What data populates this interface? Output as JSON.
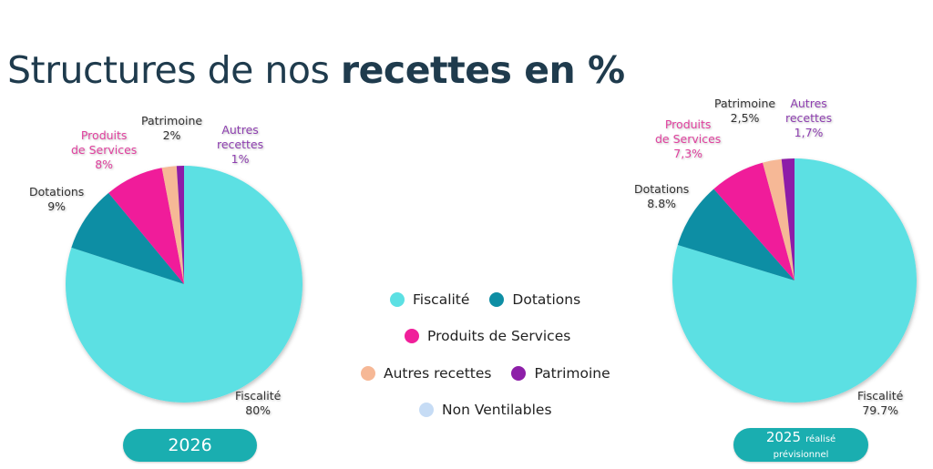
{
  "page": {
    "title_regular": "Structures de nos ",
    "title_bold": "recettes en %"
  },
  "colors": {
    "Fiscalité": "#5ce0e3",
    "Dotations": "#0e8ea4",
    "Produits de Services": "#f01f9a",
    "Autres recettes": "#f6b896",
    "Patrimoine": "#8d1fa8",
    "Non Ventilables": "#c6dcf5"
  },
  "legend": {
    "rows": [
      [
        "Fiscalité",
        "Dotations"
      ],
      [
        "Produits de Services"
      ],
      [
        "Autres recettes",
        "Patrimoine"
      ],
      [
        "Non Ventilables"
      ]
    ]
  },
  "chart_data": [
    {
      "type": "pie",
      "title": "2026",
      "year_label": "2026",
      "start": "12 o'clock, clockwise",
      "slices": [
        {
          "name": "Fiscalité",
          "value": 80,
          "label_name": "Fiscalité",
          "label_value": "80%",
          "color_key": "Fiscalité"
        },
        {
          "name": "Dotations",
          "value": 9,
          "label_name": "Dotations",
          "label_value": "9%",
          "color_key": "Dotations"
        },
        {
          "name": "Produits de Services",
          "value": 8,
          "label_name": "Produits de Services",
          "label_value": "8%",
          "color_key": "Produits de Services"
        },
        {
          "name": "Patrimoine",
          "value": 2,
          "label_name": "Patrimoine",
          "label_value": "2%",
          "color_key": "Autres recettes"
        },
        {
          "name": "Autres recettes",
          "value": 1,
          "label_name": "Autres recettes",
          "label_value": "1%",
          "color_key": "Patrimoine"
        }
      ]
    },
    {
      "type": "pie",
      "title": "2025 réalisé prévisionnel",
      "year_label": "2025",
      "year_suffix": "réalisé",
      "year_line2": "prévisionnel",
      "start": "12 o'clock, clockwise",
      "slices": [
        {
          "name": "Fiscalité",
          "value": 79.7,
          "label_name": "Fiscalité",
          "label_value": "79.7%",
          "color_key": "Fiscalité"
        },
        {
          "name": "Dotations",
          "value": 8.8,
          "label_name": "Dotations",
          "label_value": "8.8%",
          "color_key": "Dotations"
        },
        {
          "name": "Produits de Services",
          "value": 7.3,
          "label_name": "Produits de Services",
          "label_value": "7,3%",
          "color_key": "Produits de Services"
        },
        {
          "name": "Patrimoine",
          "value": 2.5,
          "label_name": "Patrimoine",
          "label_value": "2,5%",
          "color_key": "Autres recettes"
        },
        {
          "name": "Autres recettes",
          "value": 1.7,
          "label_name": "Autres recettes",
          "label_value": "1,7%",
          "color_key": "Patrimoine"
        }
      ]
    }
  ]
}
